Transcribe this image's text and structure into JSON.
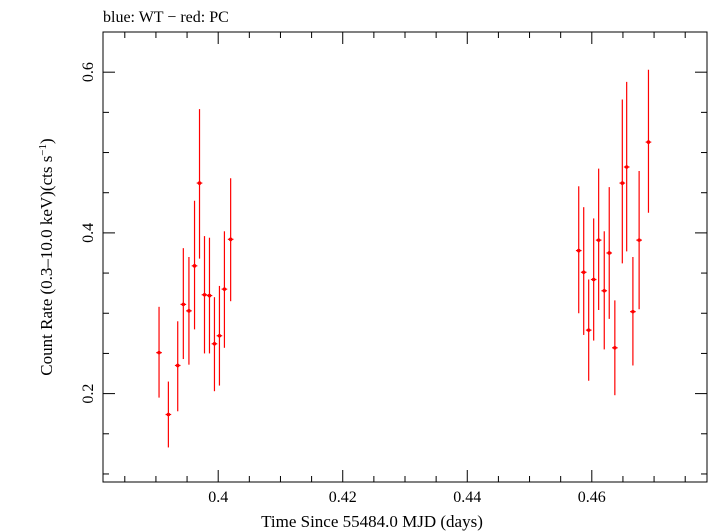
{
  "chart_data": {
    "type": "scatter",
    "title": "blue: WT − red: PC",
    "xlabel": "Time Since 55484.0 MJD (days)",
    "ylabel_main": "Count Rate (0.3–10.0 keV)(cts s",
    "ylabel_sup": "−1",
    "ylabel_close": ")",
    "xlim": [
      0.3815,
      0.4785
    ],
    "ylim": [
      0.09,
      0.65
    ],
    "x_ticks": [
      {
        "v": 0.4,
        "label": "0.4"
      },
      {
        "v": 0.42,
        "label": "0.42"
      },
      {
        "v": 0.44,
        "label": "0.44"
      },
      {
        "v": 0.46,
        "label": "0.46"
      }
    ],
    "y_ticks": [
      {
        "v": 0.2,
        "label": "0.2"
      },
      {
        "v": 0.4,
        "label": "0.4"
      },
      {
        "v": 0.6,
        "label": "0.6"
      }
    ],
    "grid": false,
    "series": [
      {
        "color": "#ff0000",
        "xerr": 0.00045,
        "points": [
          {
            "x": 0.3905,
            "y": 0.251,
            "lo": 0.195,
            "hi": 0.308
          },
          {
            "x": 0.392,
            "y": 0.174,
            "lo": 0.133,
            "hi": 0.215
          },
          {
            "x": 0.3935,
            "y": 0.235,
            "lo": 0.178,
            "hi": 0.29
          },
          {
            "x": 0.3944,
            "y": 0.311,
            "lo": 0.243,
            "hi": 0.381
          },
          {
            "x": 0.3953,
            "y": 0.303,
            "lo": 0.236,
            "hi": 0.37
          },
          {
            "x": 0.3962,
            "y": 0.359,
            "lo": 0.28,
            "hi": 0.44
          },
          {
            "x": 0.397,
            "y": 0.462,
            "lo": 0.368,
            "hi": 0.554
          },
          {
            "x": 0.3978,
            "y": 0.323,
            "lo": 0.25,
            "hi": 0.396
          },
          {
            "x": 0.3986,
            "y": 0.322,
            "lo": 0.25,
            "hi": 0.394
          },
          {
            "x": 0.3994,
            "y": 0.262,
            "lo": 0.203,
            "hi": 0.32
          },
          {
            "x": 0.4002,
            "y": 0.272,
            "lo": 0.21,
            "hi": 0.334
          },
          {
            "x": 0.401,
            "y": 0.33,
            "lo": 0.257,
            "hi": 0.402
          },
          {
            "x": 0.402,
            "y": 0.392,
            "lo": 0.315,
            "hi": 0.468
          },
          {
            "x": 0.4579,
            "y": 0.378,
            "lo": 0.3,
            "hi": 0.458
          },
          {
            "x": 0.4587,
            "y": 0.351,
            "lo": 0.273,
            "hi": 0.432
          },
          {
            "x": 0.4595,
            "y": 0.279,
            "lo": 0.216,
            "hi": 0.342
          },
          {
            "x": 0.4603,
            "y": 0.342,
            "lo": 0.266,
            "hi": 0.418
          },
          {
            "x": 0.4611,
            "y": 0.391,
            "lo": 0.304,
            "hi": 0.48
          },
          {
            "x": 0.462,
            "y": 0.328,
            "lo": 0.255,
            "hi": 0.402
          },
          {
            "x": 0.4628,
            "y": 0.375,
            "lo": 0.293,
            "hi": 0.457
          },
          {
            "x": 0.4637,
            "y": 0.257,
            "lo": 0.198,
            "hi": 0.316
          },
          {
            "x": 0.4649,
            "y": 0.462,
            "lo": 0.362,
            "hi": 0.566
          },
          {
            "x": 0.4656,
            "y": 0.482,
            "lo": 0.377,
            "hi": 0.588
          },
          {
            "x": 0.4666,
            "y": 0.302,
            "lo": 0.235,
            "hi": 0.37
          },
          {
            "x": 0.4676,
            "y": 0.391,
            "lo": 0.305,
            "hi": 0.477
          },
          {
            "x": 0.4691,
            "y": 0.513,
            "lo": 0.425,
            "hi": 0.603
          }
        ]
      }
    ]
  }
}
